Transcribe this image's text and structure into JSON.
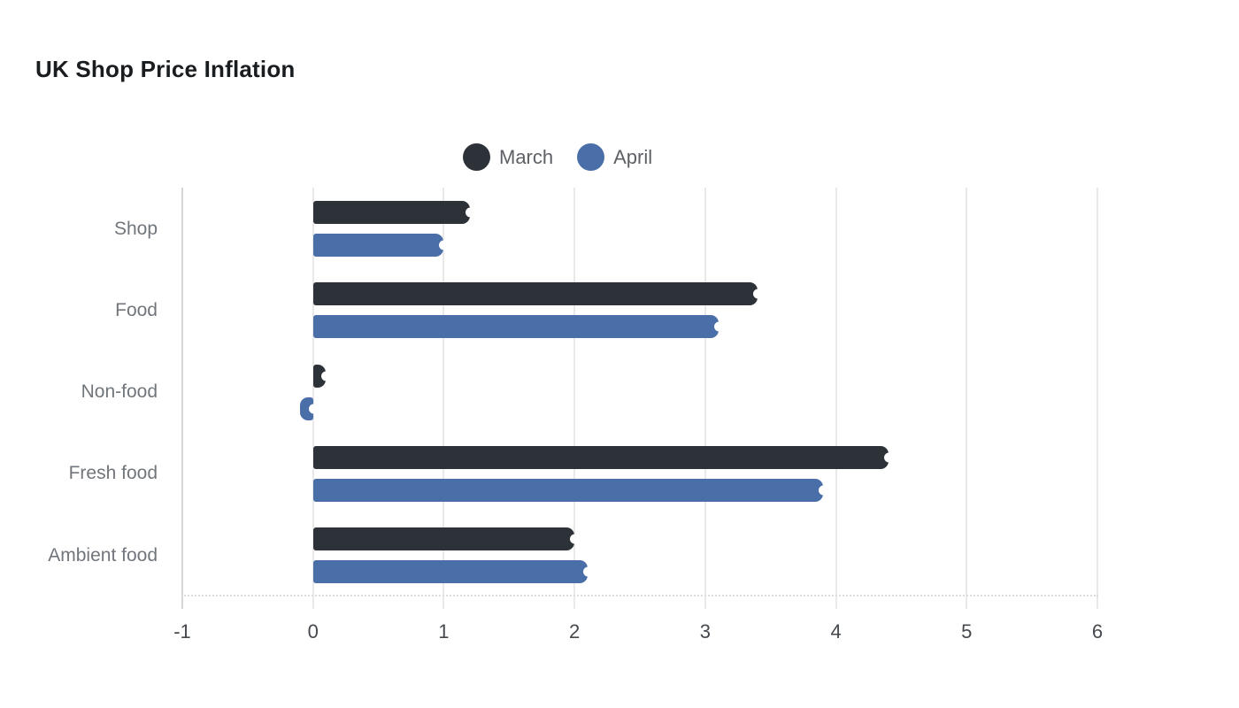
{
  "title": "UK Shop Price Inflation",
  "chart_data": {
    "type": "bar",
    "orientation": "horizontal",
    "title": "UK Shop Price Inflation",
    "categories": [
      "Shop",
      "Food",
      "Non-food",
      "Fresh food",
      "Ambient food"
    ],
    "series": [
      {
        "name": "March",
        "color": "#2c3238",
        "values": [
          1.2,
          3.4,
          0.1,
          4.4,
          2.0
        ]
      },
      {
        "name": "April",
        "color": "#4a6fa8",
        "values": [
          1.0,
          3.1,
          -0.1,
          3.9,
          2.1
        ]
      }
    ],
    "x_ticks": [
      -1,
      0,
      1,
      2,
      3,
      4,
      5,
      6
    ],
    "xlim": [
      -1,
      6
    ],
    "xlabel": "",
    "ylabel": "",
    "grid": "vertical-only",
    "legend_position": "top-center"
  },
  "colors": {
    "background": "#ffffff",
    "gridline": "#e9e9e9",
    "axis_line": "#d5d5d5",
    "dotted_baseline": "#dcdcdc",
    "title_text": "#1a1d20",
    "legend_text": "#5d6166",
    "category_text": "#71767c",
    "tick_text": "#45494e"
  }
}
